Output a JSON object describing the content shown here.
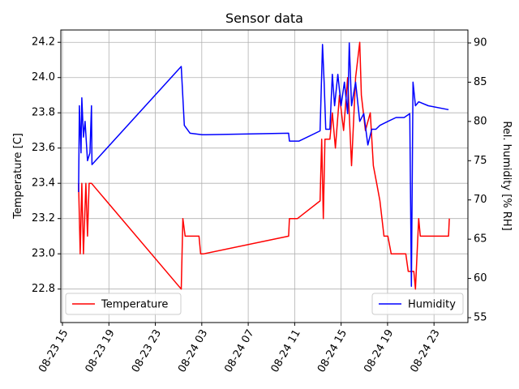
{
  "chart_data": {
    "type": "line",
    "title": "Sensor data",
    "ylabel": "Temperature [C]",
    "y2label": "Rel. humidity [% RH]",
    "xlim": [
      14.86,
      49.92
    ],
    "ylim": [
      22.61,
      24.27
    ],
    "y2lim": [
      54.38,
      91.65
    ],
    "xticks": [
      {
        "value": 15,
        "label": "08-23 15"
      },
      {
        "value": 19,
        "label": "08-23 19"
      },
      {
        "value": 23,
        "label": "08-23 23"
      },
      {
        "value": 27,
        "label": "08-24 03"
      },
      {
        "value": 31,
        "label": "08-24 07"
      },
      {
        "value": 35,
        "label": "08-24 11"
      },
      {
        "value": 39,
        "label": "08-24 15"
      },
      {
        "value": 43,
        "label": "08-24 19"
      },
      {
        "value": 47,
        "label": "08-24 23"
      }
    ],
    "yticks": [
      22.8,
      {
        "value": 23,
        "label": "23.0"
      },
      23.2,
      23.4,
      23.6,
      23.8,
      {
        "value": 24,
        "label": "24.0"
      },
      24.2
    ],
    "y2ticks": [
      55,
      60,
      65,
      70,
      75,
      80,
      85,
      90
    ],
    "grid": true,
    "series": [
      {
        "name": "Temperature",
        "color": "#ff0000",
        "legend": "lower left",
        "x": [
          16.39,
          16.53,
          16.67,
          16.81,
          17.02,
          17.16,
          17.3,
          17.5,
          25.23,
          25.37,
          25.57,
          26.76,
          26.9,
          27.17,
          34.48,
          34.55,
          35.24,
          37.19,
          37.33,
          37.47,
          37.61,
          38.03,
          38.24,
          38.51,
          38.86,
          39.21,
          39.56,
          39.9,
          40.25,
          40.6,
          40.74,
          41.09,
          41.51,
          41.78,
          42.06,
          42.34,
          42.69,
          43.03,
          43.31,
          43.87,
          44.57,
          44.78,
          45.26,
          45.4,
          45.54,
          45.68,
          45.82,
          48.25,
          48.32
        ],
        "values": [
          23.4,
          23.0,
          23.4,
          23.0,
          23.4,
          23.1,
          23.4,
          23.4,
          22.8,
          23.2,
          23.1,
          23.1,
          23.0,
          23.0,
          23.1,
          23.2,
          23.2,
          23.3,
          23.65,
          23.2,
          23.65,
          23.65,
          23.8,
          23.6,
          23.9,
          23.7,
          24.0,
          23.5,
          24.0,
          24.2,
          23.9,
          23.7,
          23.8,
          23.5,
          23.4,
          23.3,
          23.1,
          23.1,
          23.0,
          23.0,
          23.0,
          22.9,
          22.9,
          22.8,
          23.0,
          23.2,
          23.1,
          23.1,
          23.2
        ]
      },
      {
        "name": "Humidity",
        "color": "#0000ff",
        "axis": "y2",
        "legend": "lower right",
        "x": [
          16.39,
          16.46,
          16.6,
          16.67,
          16.81,
          16.95,
          17.16,
          17.37,
          17.5,
          17.54,
          25.23,
          25.3,
          25.5,
          25.99,
          27.03,
          34.48,
          34.55,
          35.38,
          37.19,
          37.4,
          37.54,
          37.68,
          38.03,
          38.24,
          38.44,
          38.72,
          39.0,
          39.28,
          39.56,
          39.7,
          39.9,
          40.25,
          40.6,
          40.95,
          41.3,
          41.64,
          41.99,
          42.34,
          43.03,
          43.73,
          44.43,
          44.91,
          45.05,
          45.19,
          45.4,
          45.68,
          46.51,
          48.25
        ],
        "values": [
          71,
          82,
          76,
          83,
          78,
          80,
          75,
          76,
          82,
          74.5,
          87,
          85,
          79.5,
          78.5,
          78.3,
          78.5,
          77.5,
          77.5,
          78.8,
          89.8,
          85,
          79,
          79,
          86,
          82,
          86,
          82,
          85,
          81,
          90,
          82,
          85,
          80,
          81,
          77,
          79,
          79,
          79.5,
          80,
          80.5,
          80.5,
          81,
          59,
          85,
          82,
          82.5,
          82,
          81.5
        ]
      }
    ]
  }
}
